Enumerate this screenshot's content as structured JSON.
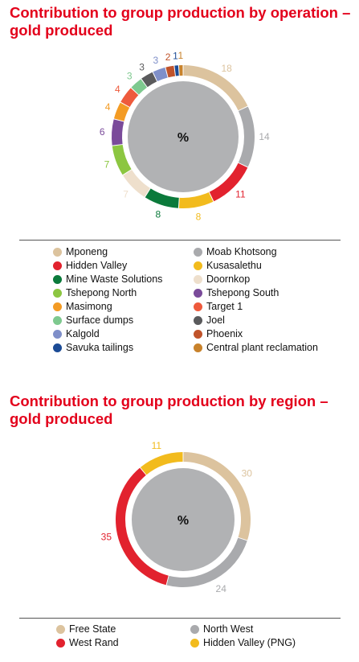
{
  "charts": [
    {
      "title": "Contribution to group production by operation – gold produced",
      "center_label": "%",
      "chart_data": {
        "type": "pie",
        "title": "Contribution to group production by operation – gold produced",
        "unit": "%",
        "slices": [
          {
            "name": "Mponeng",
            "value": 18,
            "color": "#dcc39e"
          },
          {
            "name": "Moab Khotsong",
            "value": 14,
            "color": "#a9aaad"
          },
          {
            "name": "Hidden Valley",
            "value": 11,
            "color": "#e2222e"
          },
          {
            "name": "Kusasalethu",
            "value": 8,
            "color": "#f2bb1d"
          },
          {
            "name": "Mine Waste Solutions",
            "value": 8,
            "color": "#0b7a3b"
          },
          {
            "name": "Doornkop",
            "value": 7,
            "color": "#eedfcc"
          },
          {
            "name": "Tshepong North",
            "value": 7,
            "color": "#8cc641"
          },
          {
            "name": "Tshepong South",
            "value": 6,
            "color": "#7a4b9a"
          },
          {
            "name": "Masimong",
            "value": 4,
            "color": "#f39b24"
          },
          {
            "name": "Target 1",
            "value": 4,
            "color": "#ee5a3c"
          },
          {
            "name": "Surface dumps",
            "value": 3,
            "color": "#7ec98f"
          },
          {
            "name": "Joel",
            "value": 3,
            "color": "#5a5a5c"
          },
          {
            "name": "Kalgold",
            "value": 3,
            "color": "#7f8fc9"
          },
          {
            "name": "Phoenix",
            "value": 2,
            "color": "#c0532a"
          },
          {
            "name": "Savuka tailings",
            "value": 1,
            "color": "#1b4b95"
          },
          {
            "name": "Central plant reclamation",
            "value": 1,
            "color": "#c8822b"
          }
        ]
      },
      "legend_columns": [
        [
          "Mponeng",
          "Hidden Valley",
          "Mine Waste Solutions",
          "Tshepong North",
          "Masimong",
          "Surface dumps",
          "Kalgold",
          "Savuka tailings"
        ],
        [
          "Moab Khotsong",
          "Kusasalethu",
          "Doornkop",
          "Tshepong South",
          "Target 1",
          "Joel",
          "Phoenix",
          "Central plant reclamation"
        ]
      ]
    },
    {
      "title": "Contribution to group production by region – gold produced",
      "center_label": "%",
      "chart_data": {
        "type": "pie",
        "title": "Contribution to group production by region – gold produced",
        "unit": "%",
        "slices": [
          {
            "name": "Free State",
            "value": 30,
            "color": "#dcc39e"
          },
          {
            "name": "North West",
            "value": 24,
            "color": "#a9aaad"
          },
          {
            "name": "West Rand",
            "value": 35,
            "color": "#e2222e"
          },
          {
            "name": "Hidden Valley (PNG)",
            "value": 11,
            "color": "#f2bb1d"
          }
        ]
      },
      "legend_columns": [
        [
          "Free State",
          "West Rand"
        ],
        [
          "North West",
          "Hidden Valley (PNG)"
        ]
      ]
    }
  ]
}
